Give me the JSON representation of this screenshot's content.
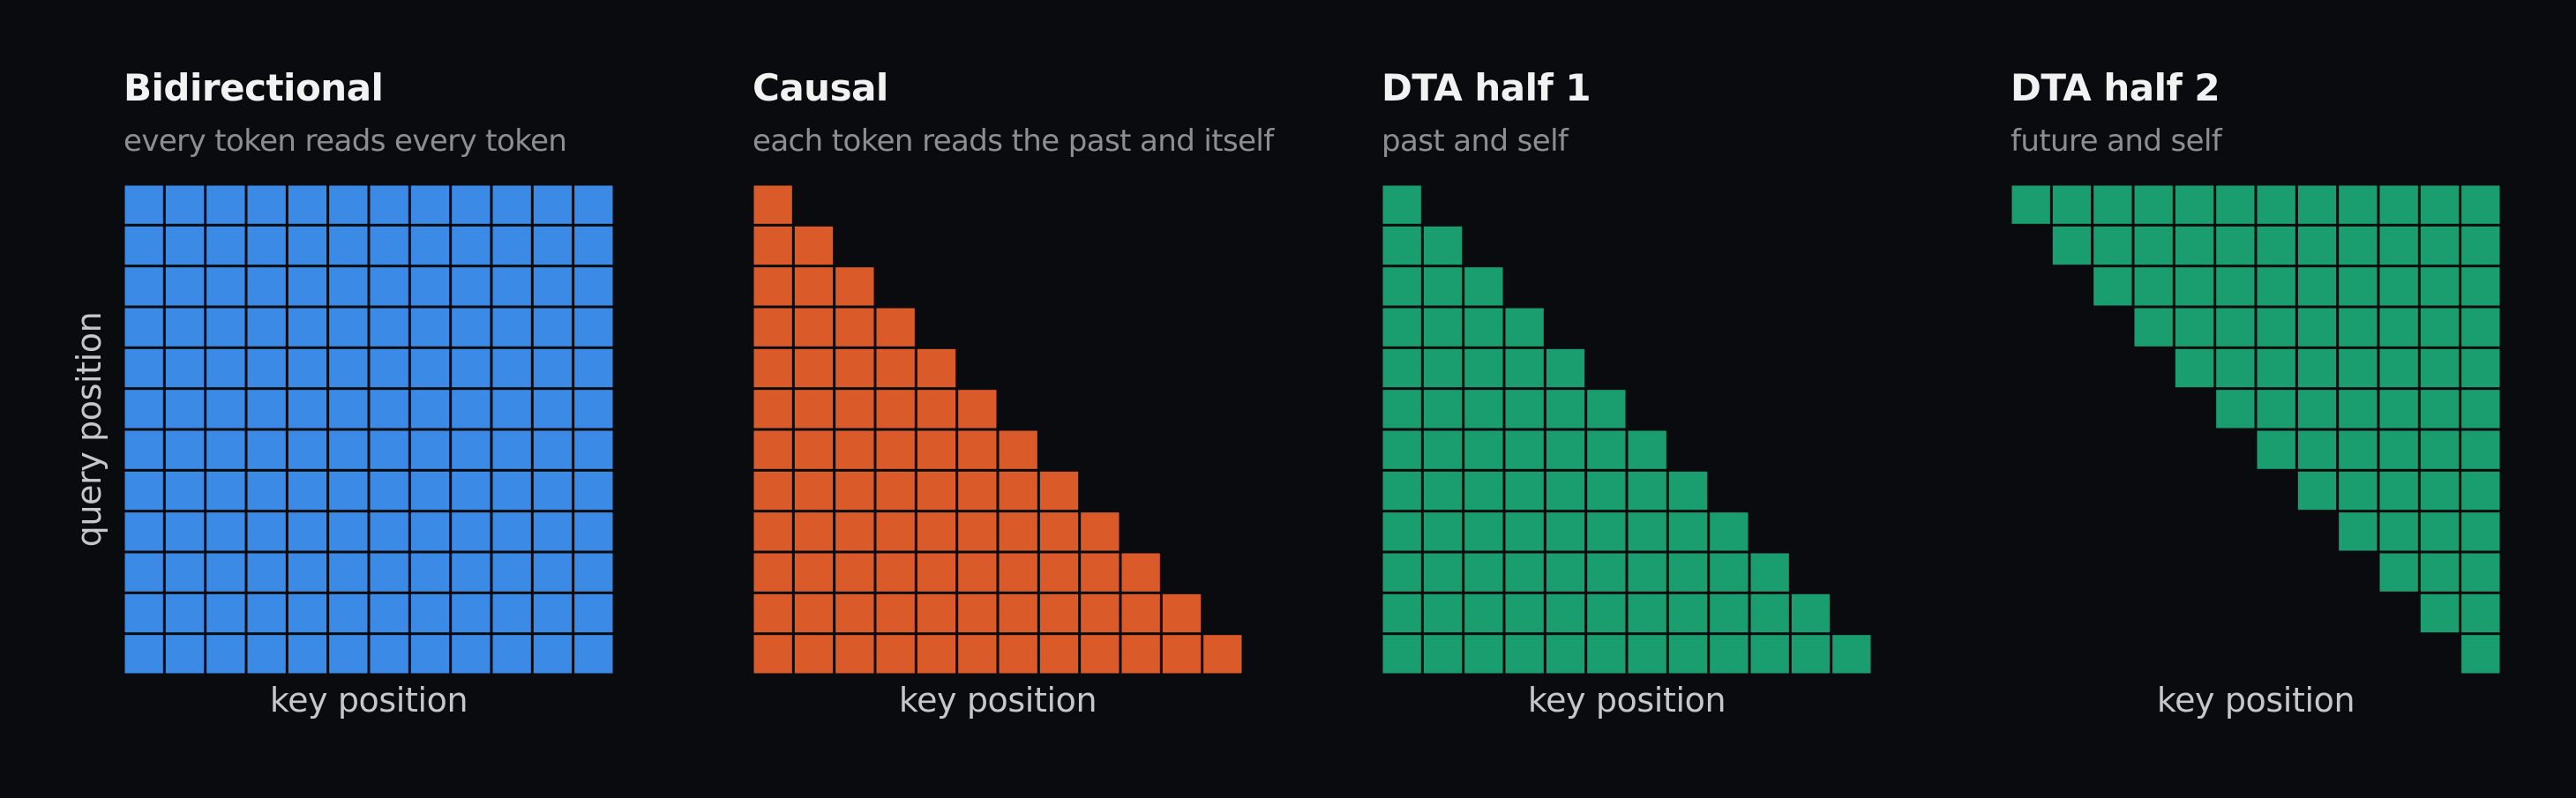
{
  "chart_data": [
    {
      "type": "heatmap",
      "title": "Bidirectional",
      "subtitle": "every token reads every token",
      "xlabel": "key position",
      "ylabel": "query position",
      "size": 12,
      "mask": "full",
      "color": "#3b8ae6"
    },
    {
      "type": "heatmap",
      "title": "Causal",
      "subtitle": "each token reads the past and itself",
      "xlabel": "key position",
      "ylabel": "",
      "size": 12,
      "mask": "lower-triangular",
      "color": "#db5a29"
    },
    {
      "type": "heatmap",
      "title": "DTA half 1",
      "subtitle": "past and self",
      "xlabel": "key position",
      "ylabel": "",
      "size": 12,
      "mask": "lower-triangular",
      "color": "#1a9e6f"
    },
    {
      "type": "heatmap",
      "title": "DTA half 2",
      "subtitle": "future and self",
      "xlabel": "key position",
      "ylabel": "",
      "size": 12,
      "mask": "upper-triangular",
      "color": "#1a9e6f"
    }
  ],
  "colors": {
    "background": "#0a0b0f",
    "empty_cell": "#0a0b0f",
    "cell_border": "#0a0b0f"
  }
}
